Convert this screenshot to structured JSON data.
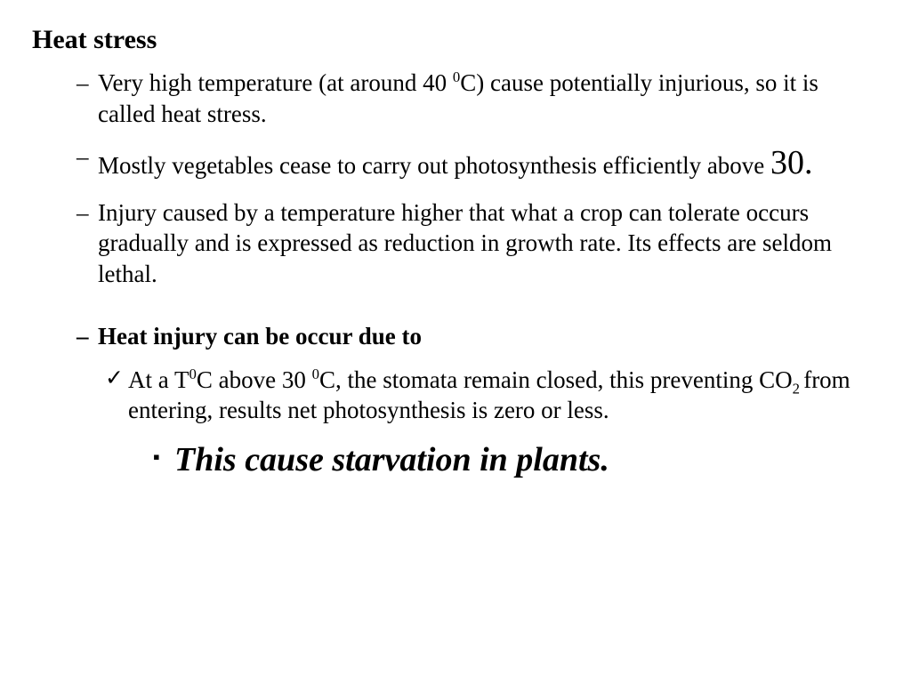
{
  "title": "Heat stress",
  "bullets": {
    "b1_pre": "Very high temperature  (at  around 40 ",
    "b1_sup": "0",
    "b1_post": "C)  cause potentially injurious, so it is called heat stress.",
    "b2_pre": "Mostly vegetables cease to carry out photosynthesis efficiently above ",
    "b2_big": "30.",
    "b3": "Injury caused by a temperature higher that what a crop can tolerate occurs gradually and is expressed as reduction in growth rate. Its effects are seldom lethal.",
    "b4": "Heat injury can be occur due to"
  },
  "check": {
    "c1_a": "At a T",
    "c1_sup1": "0",
    "c1_b": "C  above 30 ",
    "c1_sup2": "0",
    "c1_c": "C, the stomata remain closed, this preventing CO",
    "c1_sub": "2 ",
    "c1_d": "from entering, results net photosynthesis is zero or less."
  },
  "square": {
    "s1": "This cause starvation in plants."
  },
  "style": {
    "background_color": "#ffffff",
    "text_color": "#000000",
    "font_family": "Times New Roman",
    "title_fontsize": 30,
    "body_fontsize": 27,
    "big_fontsize": 38,
    "conclusion_fontsize": 38
  }
}
